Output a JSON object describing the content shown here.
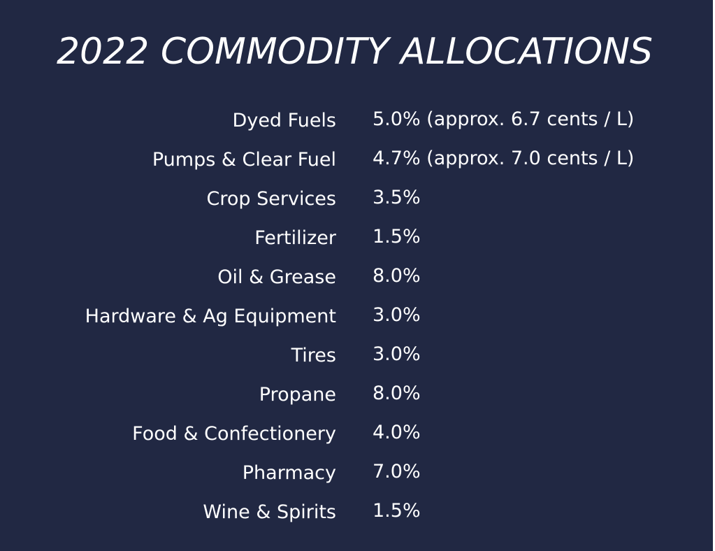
{
  "title": "2022 COMMODITY ALLOCATIONS",
  "allocations": [
    {
      "category": "Dyed Fuels",
      "value": "5.0% (approx. 6.7 cents / L)"
    },
    {
      "category": "Pumps & Clear Fuel",
      "value": "4.7% (approx. 7.0 cents / L)"
    },
    {
      "category": "Crop Services",
      "value": "3.5%"
    },
    {
      "category": "Fertilizer",
      "value": "1.5%"
    },
    {
      "category": "Oil & Grease",
      "value": "8.0%"
    },
    {
      "category": "Hardware & Ag Equipment",
      "value": "3.0%"
    },
    {
      "category": "Tires",
      "value": "3.0%"
    },
    {
      "category": "Propane",
      "value": "8.0%"
    },
    {
      "category": "Food & Confectionery",
      "value": "4.0%"
    },
    {
      "category": "Pharmacy",
      "value": "7.0%"
    },
    {
      "category": "Wine & Spirits",
      "value": "1.5%"
    }
  ],
  "colors": {
    "background": "#212843",
    "text": "#ffffff"
  }
}
